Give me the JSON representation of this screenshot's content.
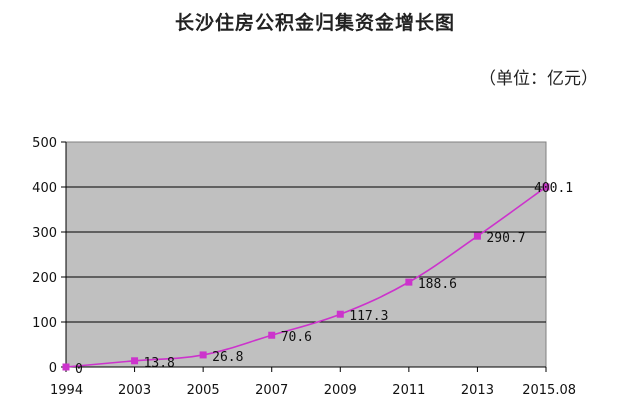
{
  "title": "长沙住房公积金归集资金增长图",
  "unit": "（单位：亿元）",
  "colors": {
    "plot_background": "#c0c0c0",
    "series": "#cc33cc",
    "grid": "#000000"
  },
  "chart_data": {
    "type": "line",
    "categories": [
      "1994",
      "2003",
      "2005",
      "2007",
      "2009",
      "2011",
      "2013",
      "2015.08"
    ],
    "values": [
      0,
      13.8,
      26.8,
      70.6,
      117.3,
      188.6,
      290.7,
      400.1
    ],
    "data_labels": [
      "0",
      "13.8",
      "26.8",
      "70.6",
      "117.3",
      "188.6",
      "290.7",
      "400.1"
    ],
    "title": "长沙住房公积金归集资金增长图",
    "ylabel": "",
    "xlabel": "",
    "ylim": [
      0,
      500
    ],
    "yticks": [
      0,
      100,
      200,
      300,
      400,
      500
    ],
    "grid": true,
    "legend": "none"
  }
}
